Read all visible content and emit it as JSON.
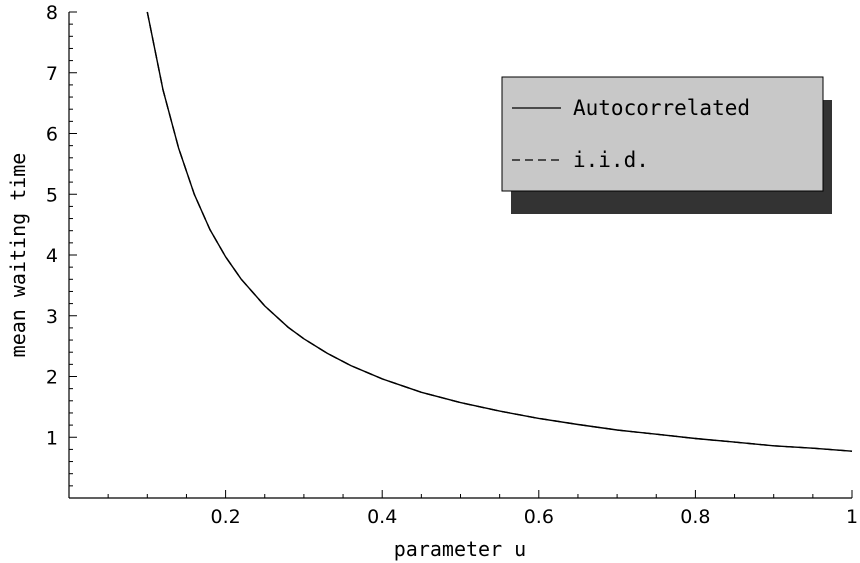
{
  "chart_data": {
    "type": "line",
    "title": "",
    "xlabel": "parameter u",
    "ylabel": "mean waiting time",
    "xlim": [
      0,
      1
    ],
    "ylim": [
      0,
      8
    ],
    "x_ticks": [
      0.2,
      0.4,
      0.6,
      0.8,
      1
    ],
    "x_tick_labels": [
      "0.2",
      "0.4",
      "0.6",
      "0.8",
      "1"
    ],
    "y_ticks": [
      1,
      2,
      3,
      4,
      5,
      6,
      7,
      8
    ],
    "y_tick_labels": [
      "1",
      "2",
      "3",
      "4",
      "5",
      "6",
      "7",
      "8"
    ],
    "grid": false,
    "legend_position": "top-right",
    "series": [
      {
        "name": "Autocorrelated",
        "style": "solid",
        "color": "#000000",
        "x": [
          0.1,
          0.12,
          0.14,
          0.16,
          0.18,
          0.2,
          0.22,
          0.25,
          0.28,
          0.3,
          0.33,
          0.36,
          0.4,
          0.45,
          0.5,
          0.55,
          0.6,
          0.65,
          0.7,
          0.75,
          0.8,
          0.85,
          0.9,
          0.95,
          1.0
        ],
        "y": [
          8.0,
          6.72,
          5.76,
          5.0,
          4.42,
          3.97,
          3.6,
          3.16,
          2.81,
          2.62,
          2.38,
          2.18,
          1.96,
          1.74,
          1.57,
          1.43,
          1.31,
          1.21,
          1.12,
          1.05,
          0.98,
          0.92,
          0.86,
          0.82,
          0.77
        ]
      },
      {
        "name": "i.i.d.",
        "style": "dashed",
        "color": "#000000",
        "x": [
          0.1,
          0.12,
          0.14,
          0.16,
          0.18,
          0.2,
          0.22,
          0.25,
          0.28,
          0.3,
          0.33,
          0.36,
          0.4,
          0.45,
          0.5,
          0.55,
          0.6,
          0.65,
          0.7,
          0.75,
          0.8,
          0.85,
          0.9,
          0.95,
          1.0
        ],
        "y": [
          8.0,
          6.72,
          5.76,
          5.0,
          4.42,
          3.97,
          3.6,
          3.16,
          2.81,
          2.62,
          2.38,
          2.18,
          1.96,
          1.74,
          1.57,
          1.43,
          1.31,
          1.21,
          1.12,
          1.05,
          0.98,
          0.92,
          0.86,
          0.82,
          0.77
        ]
      }
    ]
  },
  "colors": {
    "legend_fill": "#c8c8c8",
    "legend_shadow": "#333333",
    "axis": "#000000"
  }
}
